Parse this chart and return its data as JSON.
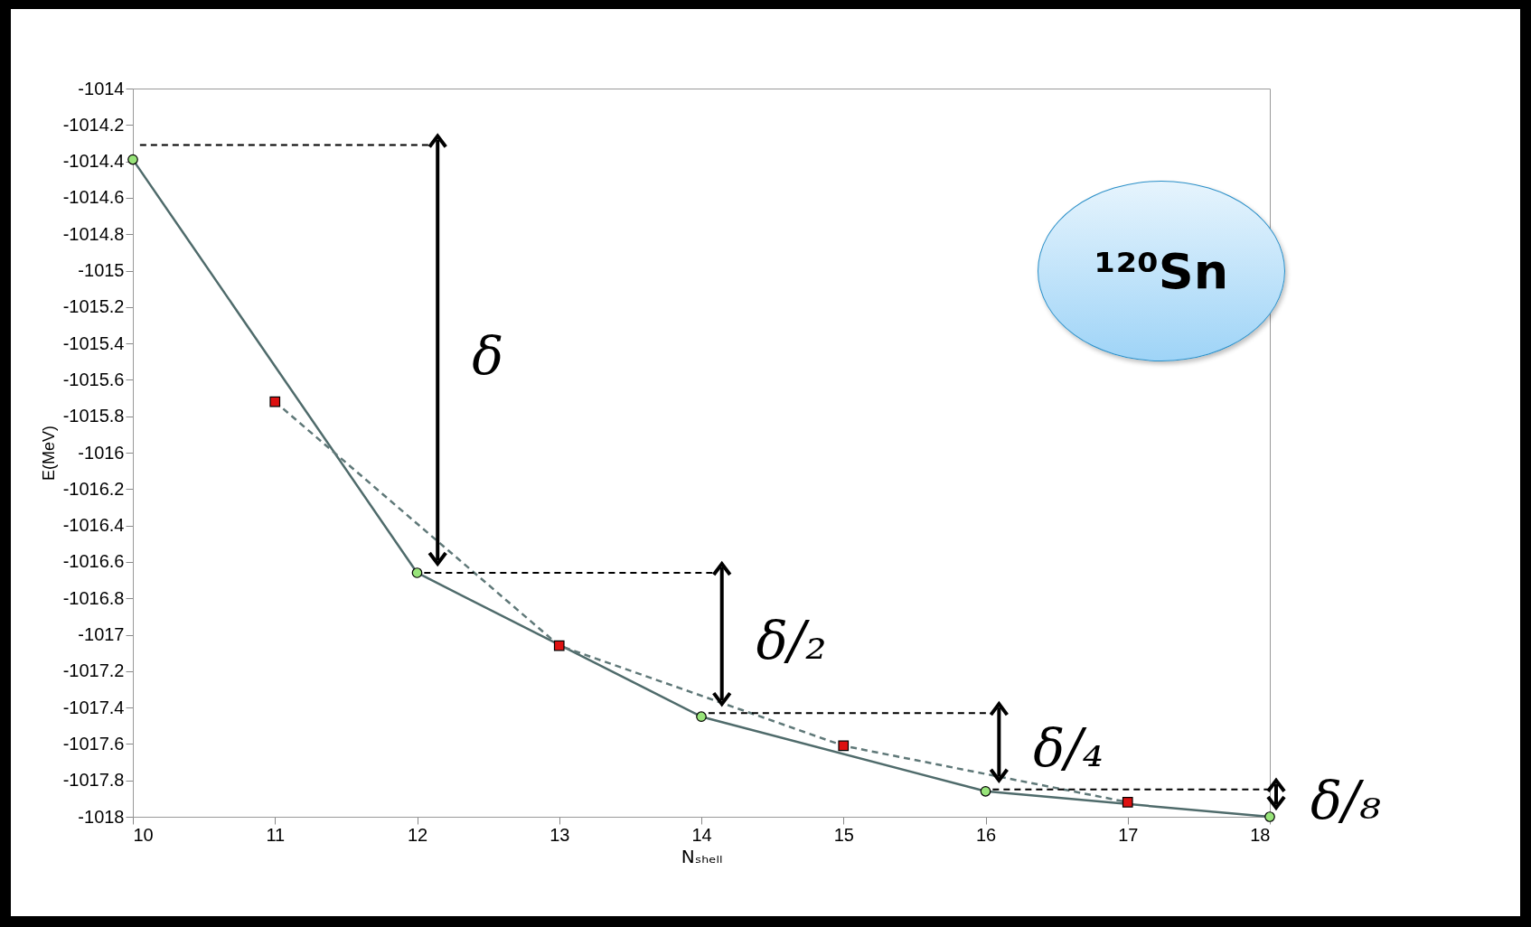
{
  "chart_data": {
    "type": "line",
    "xlabel": "Nₛₕₑₗₗ",
    "ylabel": "E(MeV)",
    "xlim": [
      10,
      18
    ],
    "xticks": [
      10,
      11,
      12,
      13,
      14,
      15,
      16,
      17,
      18
    ],
    "ylim": [
      -1018,
      -1014
    ],
    "yticks": [
      -1018,
      -1017.8,
      -1017.6,
      -1017.4,
      -1017.2,
      -1017,
      -1016.8,
      -1016.6,
      -1016.4,
      -1016.2,
      -1016,
      -1015.8,
      -1015.6,
      -1015.4,
      -1015.2,
      -1015,
      -1014.8,
      -1014.6,
      -1014.4,
      -1014.2,
      -1014
    ],
    "series": [
      {
        "color": "#4f6b6b",
        "line_style": "solid",
        "marker": "none",
        "x": [
          10,
          12,
          14,
          16,
          18
        ],
        "values": [
          -1014.39,
          -1016.66,
          -1017.45,
          -1017.86,
          -1018.0
        ]
      },
      {
        "color": "#5f7878",
        "line_style": "dashed",
        "marker": "none",
        "x": [
          11,
          13,
          15,
          17
        ],
        "values": [
          -1015.72,
          -1017.06,
          -1017.61,
          -1017.92
        ]
      },
      {
        "type": "scatter",
        "color": "#98e47a",
        "marker": "circle",
        "x": [
          10,
          12,
          14,
          16,
          18
        ],
        "values": [
          -1014.39,
          -1016.66,
          -1017.45,
          -1017.86,
          -1018.0
        ]
      },
      {
        "type": "scatter",
        "color": "#dd1111",
        "marker": "square",
        "x": [
          11,
          13,
          15,
          17
        ],
        "values": [
          -1015.72,
          -1017.06,
          -1017.61,
          -1017.92
        ]
      },
      {
        "type": "line",
        "color": "#000000",
        "line_style": "dashed",
        "marker": "none",
        "x": [
          10.05,
          12.1
        ],
        "values": [
          -1014.31,
          -1014.31
        ]
      },
      {
        "type": "line",
        "color": "#000000",
        "line_style": "dashed",
        "marker": "none",
        "x": [
          12.05,
          14.1
        ],
        "values": [
          -1016.66,
          -1016.66
        ]
      },
      {
        "type": "line",
        "color": "#000000",
        "line_style": "dashed",
        "marker": "none",
        "x": [
          14.05,
          16.05
        ],
        "values": [
          -1017.43,
          -1017.43
        ]
      },
      {
        "type": "line",
        "color": "#000000",
        "line_style": "dashed",
        "marker": "none",
        "x": [
          16.05,
          18
        ],
        "values": [
          -1017.85,
          -1017.85
        ]
      }
    ],
    "annotations": [
      "δ",
      "δ/₂",
      "δ/₄",
      "δ/₈",
      "¹²⁰Sn"
    ]
  }
}
